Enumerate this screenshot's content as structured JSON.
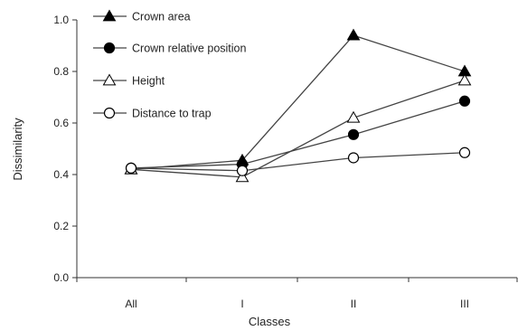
{
  "chart_data": {
    "type": "line",
    "title": "",
    "xlabel": "Classes",
    "ylabel": "Dissimilarity",
    "categories": [
      "All",
      "I",
      "II",
      "III"
    ],
    "ylim": [
      0.0,
      1.0
    ],
    "yticks": [
      "0.0",
      "0.2",
      "0.4",
      "0.6",
      "0.8",
      "1.0"
    ],
    "grid": false,
    "legend_position": "top-left",
    "series": [
      {
        "name": "Crown area",
        "marker": "filled-triangle",
        "values": [
          0.42,
          0.455,
          0.94,
          0.8
        ]
      },
      {
        "name": "Crown relative position",
        "marker": "filled-circle",
        "values": [
          0.425,
          0.44,
          0.555,
          0.685
        ]
      },
      {
        "name": "Height",
        "marker": "open-triangle",
        "values": [
          0.42,
          0.39,
          0.62,
          0.765
        ]
      },
      {
        "name": "Distance to trap",
        "marker": "open-circle",
        "values": [
          0.425,
          0.415,
          0.465,
          0.485
        ]
      }
    ]
  },
  "colors": {
    "line": "#444444",
    "marker": "#000000",
    "axis": "#333333",
    "background": "#ffffff"
  }
}
